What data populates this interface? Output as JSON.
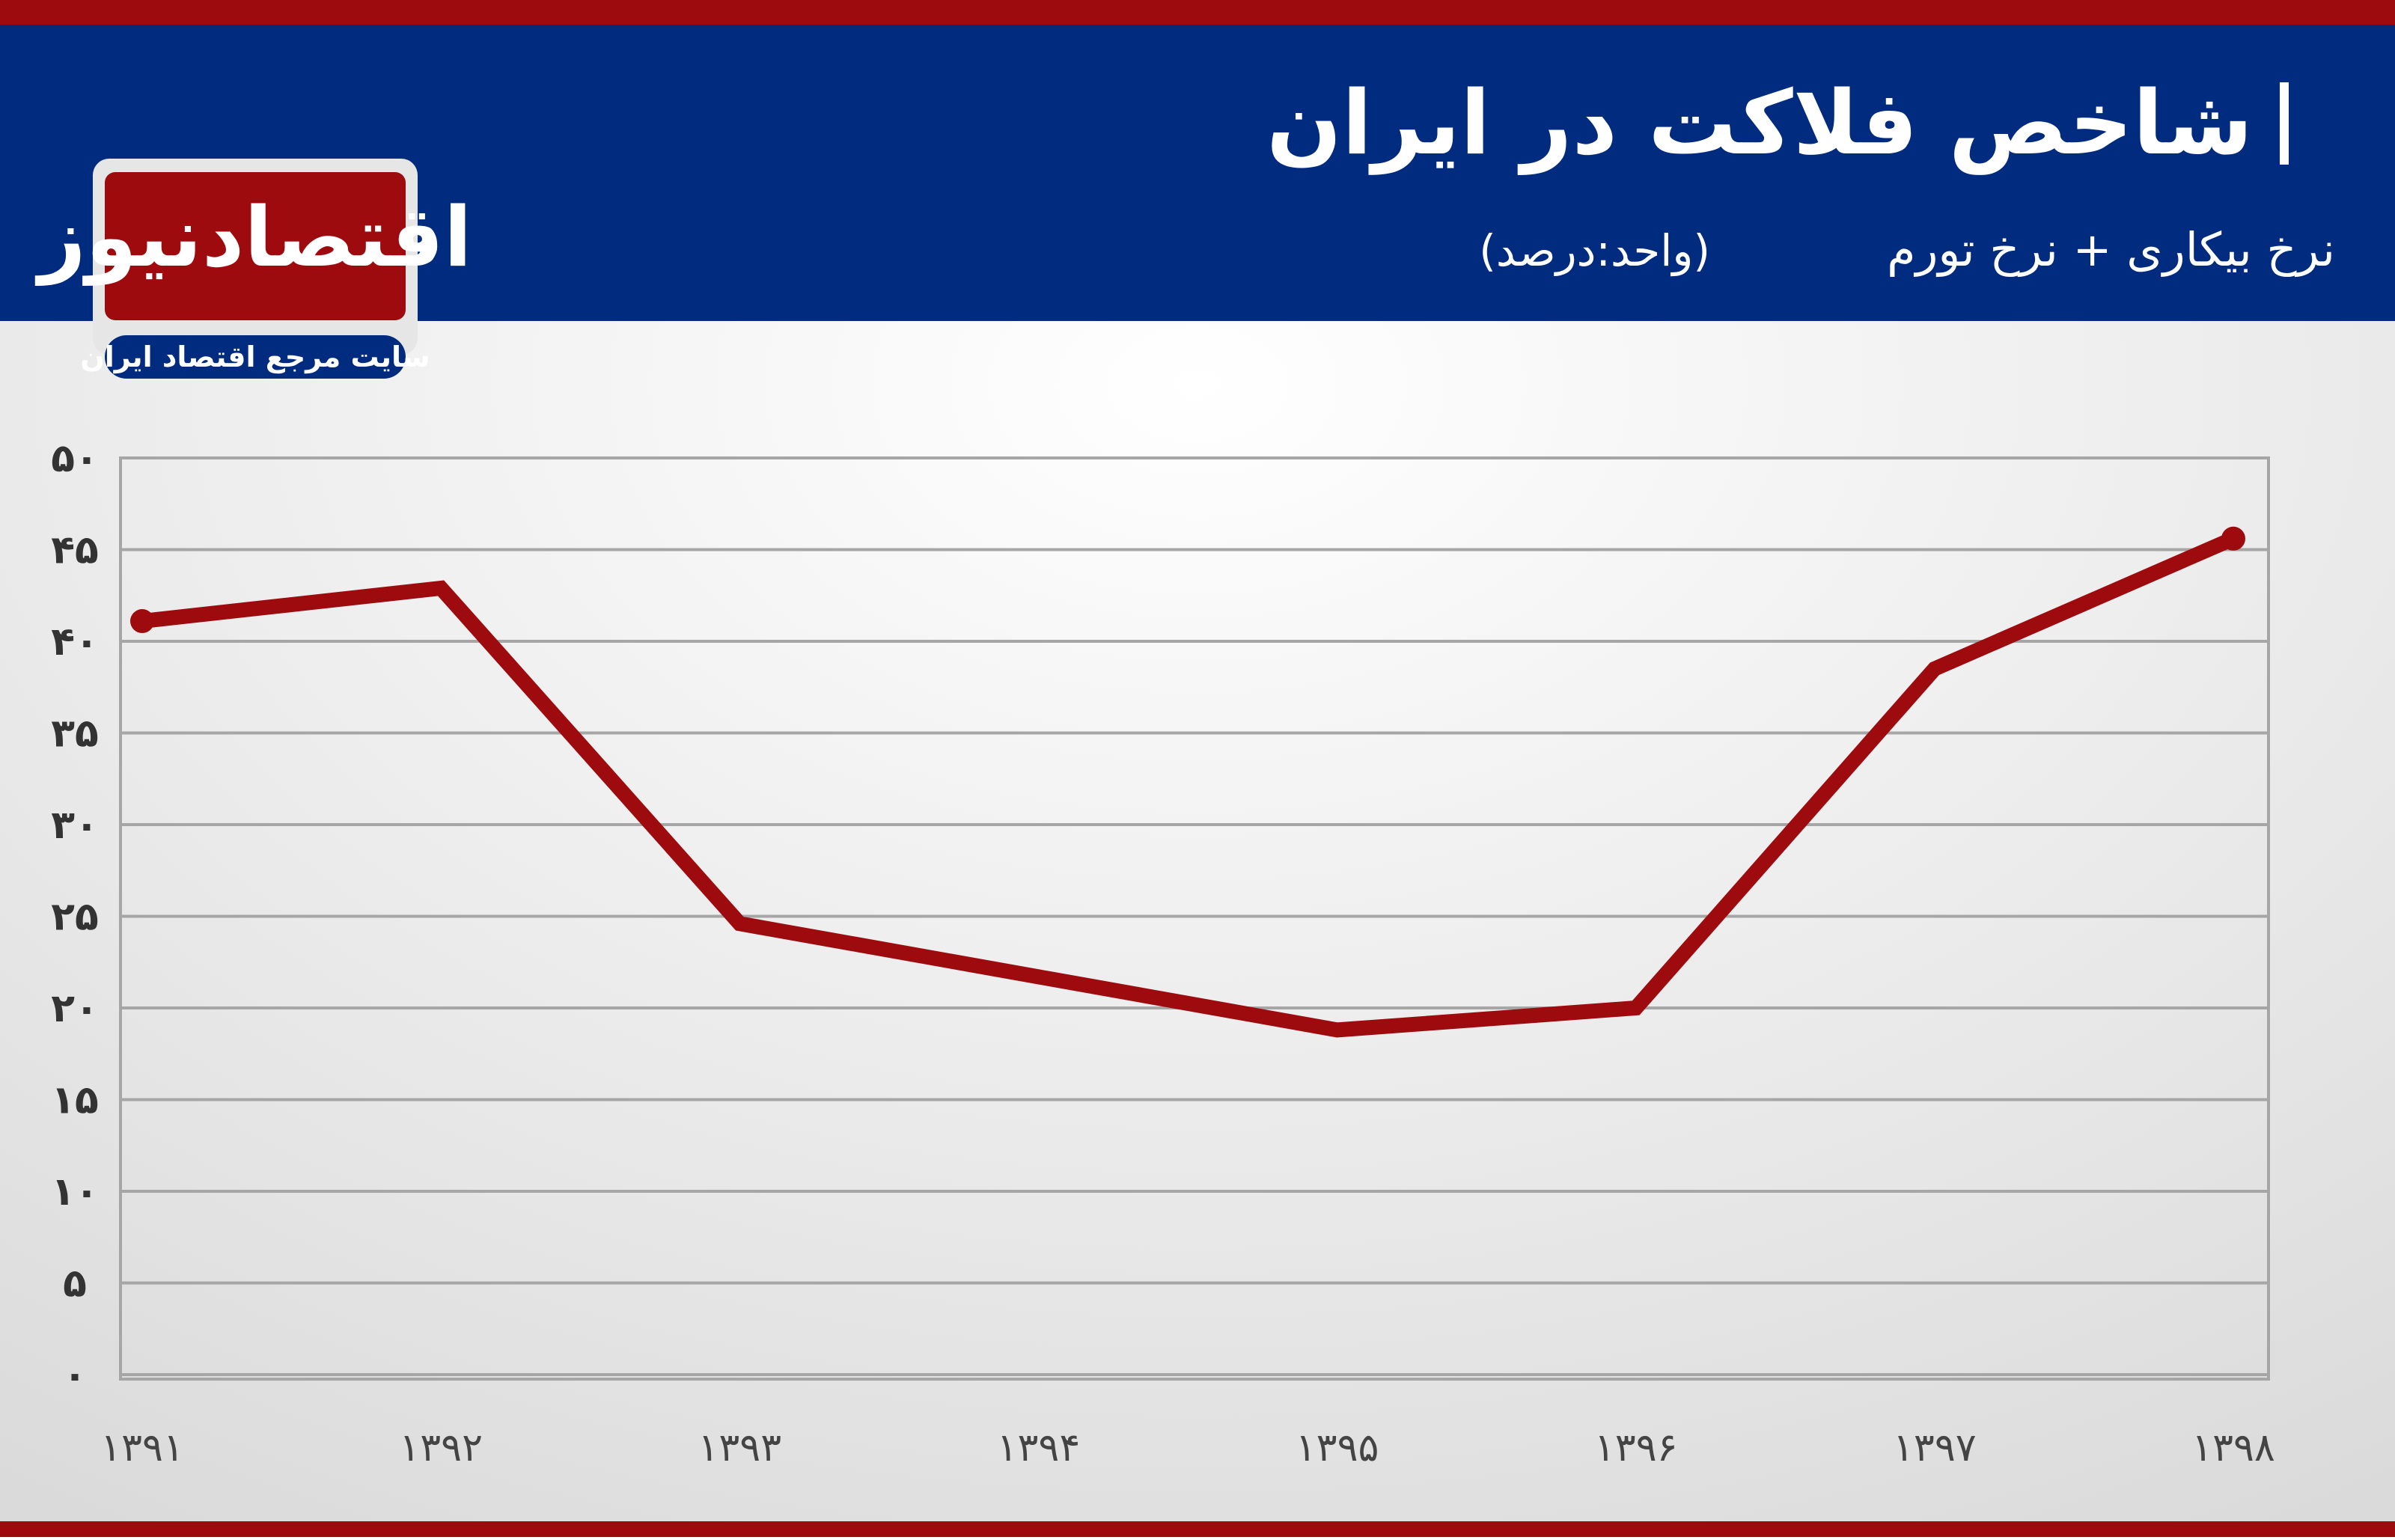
{
  "logo": {
    "name": "اقتصادنیوز",
    "tagline": "سایت مرجع اقتصاد ایران"
  },
  "chart_data": {
    "type": "line",
    "title": "شاخص فلاکت در ایران",
    "subtitle": "نرخ بیکاری + نرخ تورم",
    "unit_note": "(واحد:درصد)",
    "categories": [
      "۱۳۹۱",
      "۱۳۹۲",
      "۱۳۹۳",
      "۱۳۹۴",
      "۱۳۹۵",
      "۱۳۹۶",
      "۱۳۹۷",
      "۱۳۹۸"
    ],
    "series": [
      {
        "color": "#9e0b0f",
        "values": [
          41.1,
          42.9,
          24.6,
          21.7,
          18.8,
          20.0,
          38.5,
          45.6
        ]
      }
    ],
    "ylim": [
      0,
      50
    ],
    "yticks": [
      {
        "value": 0,
        "label": "۰"
      },
      {
        "value": 5,
        "label": "۵"
      },
      {
        "value": 10,
        "label": "۱۰"
      },
      {
        "value": 15,
        "label": "۱۵"
      },
      {
        "value": 20,
        "label": "۲۰"
      },
      {
        "value": 25,
        "label": "۲۵"
      },
      {
        "value": 30,
        "label": "۳۰"
      },
      {
        "value": 35,
        "label": "۳۵"
      },
      {
        "value": 40,
        "label": "۴۰"
      },
      {
        "value": 45,
        "label": "۴۵"
      },
      {
        "value": 50,
        "label": "۵۰"
      }
    ],
    "grid": true
  }
}
